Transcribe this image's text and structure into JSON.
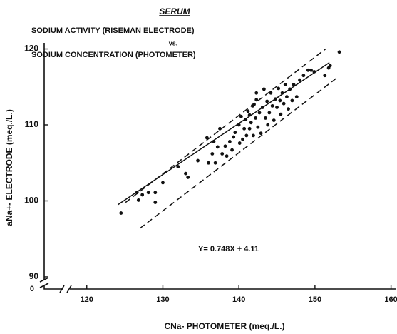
{
  "chart_data": {
    "type": "scatter",
    "title": "SERUM",
    "subtitle_lines": [
      "SODIUM ACTIVITY (RISEMAN ELECTRODE)",
      "vs.",
      "SODIUM CONCENTRATION (PHOTOMETER)"
    ],
    "x_label": "CNa- PHOTOMETER (meq./L.)",
    "y_label": "aNa+- ELECTRODE (meq./L.)",
    "origin_label": "0",
    "annotation": "Y= 0.748X + 4.11",
    "xlim": [
      114.4,
      160.6
    ],
    "ylim": [
      88.4,
      120.8
    ],
    "xticks": [
      120,
      130,
      140,
      150,
      160
    ],
    "yticks": [
      90,
      100,
      110,
      120
    ],
    "color": "#111111",
    "x": [
      124.5,
      126.6,
      127.3,
      128.1,
      126.8,
      129.0,
      129.0,
      130.0,
      132.0,
      133.0,
      133.3,
      134.6,
      135.8,
      136.0,
      136.5,
      136.7,
      136.9,
      137.2,
      137.5,
      137.8,
      138.2,
      138.4,
      138.8,
      139.3,
      139.5,
      140.0,
      140.3,
      140.5,
      140.7,
      140.9,
      141.2,
      141.4,
      141.6,
      141.8,
      141.9,
      142.2,
      142.3,
      142.5,
      142.7,
      142.9,
      143.1,
      143.3,
      143.5,
      143.7,
      143.8,
      144.0,
      144.2,
      144.4,
      144.6,
      144.8,
      145.0,
      145.2,
      145.4,
      145.5,
      145.7,
      145.9,
      146.1,
      146.3,
      146.5,
      146.7,
      147.0,
      147.2,
      147.6,
      148.0,
      148.5,
      149.1,
      149.5,
      149.9,
      151.3,
      151.8,
      152.0,
      153.2,
      141.4,
      142.0,
      142.3,
      140.1,
      139.1,
      141.0
    ],
    "values": [
      98.4,
      101.1,
      100.8,
      101.1,
      100.1,
      99.8,
      101.1,
      102.4,
      104.5,
      103.6,
      103.1,
      105.3,
      108.3,
      105.0,
      106.2,
      107.8,
      105.0,
      107.1,
      109.5,
      106.2,
      107.2,
      105.9,
      107.8,
      108.4,
      109.0,
      110.0,
      111.1,
      108.1,
      109.5,
      110.7,
      111.8,
      109.5,
      110.3,
      112.5,
      108.6,
      110.9,
      113.3,
      109.7,
      111.6,
      108.9,
      112.3,
      114.7,
      110.9,
      113.1,
      110.0,
      111.6,
      114.2,
      112.5,
      110.6,
      113.4,
      112.3,
      114.8,
      113.2,
      111.4,
      114.2,
      112.8,
      115.3,
      113.7,
      112.1,
      114.7,
      113.2,
      115.3,
      113.7,
      115.9,
      116.5,
      117.2,
      117.2,
      117.0,
      116.5,
      117.5,
      117.8,
      119.6,
      111.3,
      112.7,
      114.2,
      107.6,
      106.7,
      108.6
    ],
    "fit_line": {
      "x": [
        124.1,
        151.9
      ],
      "y": [
        99.5,
        118.2
      ],
      "dashed": false
    },
    "bound_lines": [
      {
        "x": [
          125.1,
          151.4
        ],
        "y": [
          99.8,
          120.0
        ],
        "dashed": true
      },
      {
        "x": [
          127.0,
          152.9
        ],
        "y": [
          96.4,
          116.2
        ],
        "dashed": true
      }
    ]
  }
}
